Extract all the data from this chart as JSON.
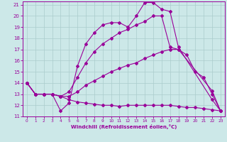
{
  "xlabel": "Windchill (Refroidissement éolien,°C)",
  "xlim": [
    -0.5,
    23.5
  ],
  "ylim": [
    11,
    21.3
  ],
  "yticks": [
    11,
    12,
    13,
    14,
    15,
    16,
    17,
    18,
    19,
    20,
    21
  ],
  "xticks": [
    0,
    1,
    2,
    3,
    4,
    5,
    6,
    7,
    8,
    9,
    10,
    11,
    12,
    13,
    14,
    15,
    16,
    17,
    18,
    19,
    20,
    21,
    22,
    23
  ],
  "bg_color": "#cce8e8",
  "grid_color": "#aacccc",
  "line_color": "#990099",
  "series": [
    {
      "x": [
        0,
        1,
        2,
        3,
        4,
        5,
        6,
        7,
        8,
        9,
        10,
        11,
        12,
        13,
        14,
        15,
        16,
        17,
        18,
        22,
        23
      ],
      "y": [
        14,
        13,
        13,
        13,
        11.5,
        12.2,
        15.5,
        17.5,
        18.5,
        19.2,
        19.4,
        19.4,
        19.0,
        20.0,
        21.2,
        21.2,
        20.6,
        20.4,
        17.2,
        12.5,
        11.5
      ]
    },
    {
      "x": [
        0,
        1,
        2,
        3,
        4,
        5,
        6,
        7,
        8,
        9,
        10,
        11,
        12,
        13,
        14,
        15,
        16,
        17,
        18,
        22,
        23
      ],
      "y": [
        14,
        13,
        13,
        13,
        12.8,
        13.2,
        14.5,
        15.8,
        16.8,
        17.5,
        18.0,
        18.5,
        18.8,
        19.2,
        19.5,
        20.0,
        20.0,
        17.2,
        17.0,
        13.3,
        11.5
      ]
    },
    {
      "x": [
        0,
        1,
        2,
        3,
        4,
        5,
        6,
        7,
        8,
        9,
        10,
        11,
        12,
        13,
        14,
        15,
        16,
        17,
        18,
        19,
        20,
        21,
        22,
        23
      ],
      "y": [
        14,
        13,
        13,
        13,
        12.8,
        12.8,
        13.2,
        13.8,
        14.2,
        14.6,
        15.0,
        15.3,
        15.6,
        15.8,
        16.2,
        16.5,
        16.8,
        17.0,
        17.0,
        16.5,
        15.0,
        14.5,
        13.0,
        11.5
      ]
    },
    {
      "x": [
        0,
        1,
        2,
        3,
        4,
        5,
        6,
        7,
        8,
        9,
        10,
        11,
        12,
        13,
        14,
        15,
        16,
        17,
        18,
        19,
        20,
        21,
        22,
        23
      ],
      "y": [
        14,
        13,
        13,
        13,
        12.8,
        12.5,
        12.3,
        12.2,
        12.1,
        12.0,
        12.0,
        11.9,
        12.0,
        12.0,
        12.0,
        12.0,
        12.0,
        12.0,
        11.9,
        11.8,
        11.8,
        11.7,
        11.6,
        11.5
      ]
    }
  ]
}
